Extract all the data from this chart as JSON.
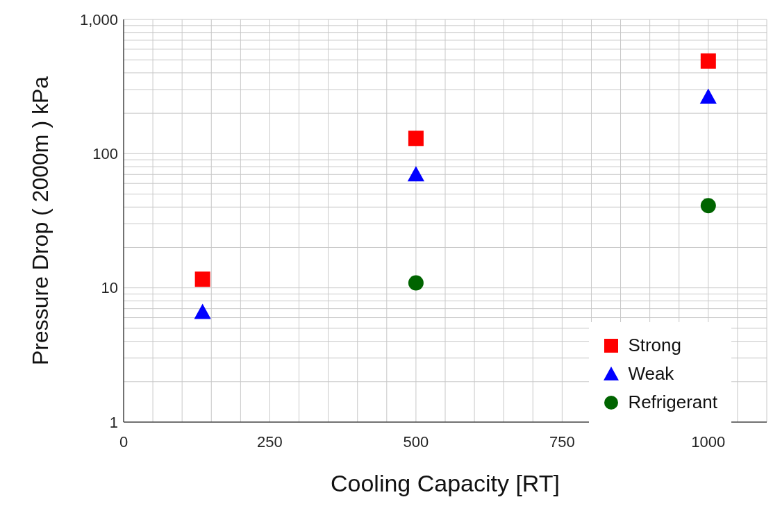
{
  "chart_data": {
    "type": "scatter",
    "xlabel": "Cooling Capacity  [RT]",
    "ylabel": "Pressure Drop ( 2000m )    kPa",
    "log": "y",
    "grid": true,
    "legend": "bottom right",
    "xlim": [
      0,
      1100
    ],
    "xticks": [
      0,
      {
        "value": 50,
        "label": null
      },
      {
        "value": 100,
        "label": null
      },
      {
        "value": 150,
        "label": null
      },
      {
        "value": 200,
        "label": null
      },
      250,
      {
        "value": 300,
        "label": null
      },
      {
        "value": 350,
        "label": null
      },
      {
        "value": 400,
        "label": null
      },
      {
        "value": 450,
        "label": null
      },
      500,
      {
        "value": 550,
        "label": null
      },
      {
        "value": 600,
        "label": null
      },
      {
        "value": 650,
        "label": null
      },
      {
        "value": 700,
        "label": null
      },
      750,
      {
        "value": 800,
        "label": null
      },
      {
        "value": 850,
        "label": null
      },
      {
        "value": 900,
        "label": null
      },
      {
        "value": 950,
        "label": null
      },
      1000,
      {
        "value": 1050,
        "label": null
      }
    ],
    "ylim": [
      1,
      1000
    ],
    "yticks": [
      1,
      {
        "value": 2,
        "label": null
      },
      {
        "value": 3,
        "label": null
      },
      {
        "value": 4,
        "label": null
      },
      {
        "value": 5,
        "label": null
      },
      {
        "value": 6,
        "label": null
      },
      {
        "value": 7,
        "label": null
      },
      {
        "value": 8,
        "label": null
      },
      {
        "value": 9,
        "label": null
      },
      10,
      {
        "value": 20,
        "label": null
      },
      {
        "value": 30,
        "label": null
      },
      {
        "value": 40,
        "label": null
      },
      {
        "value": 50,
        "label": null
      },
      {
        "value": 60,
        "label": null
      },
      {
        "value": 70,
        "label": null
      },
      {
        "value": 80,
        "label": null
      },
      {
        "value": 90,
        "label": null
      },
      100,
      {
        "value": 200,
        "label": null
      },
      {
        "value": 300,
        "label": null
      },
      {
        "value": 400,
        "label": null
      },
      {
        "value": 500,
        "label": null
      },
      {
        "value": 600,
        "label": null
      },
      {
        "value": 700,
        "label": null
      },
      {
        "value": 800,
        "label": null
      },
      {
        "value": 900,
        "label": null
      },
      {
        "value": 1000,
        "label": "1,000"
      }
    ],
    "series": [
      {
        "name": "Strong",
        "color": "#ff0000",
        "marker": "square",
        "x": [
          135,
          500,
          1000
        ],
        "values": [
          11.6,
          130,
          490
        ]
      },
      {
        "name": "Weak",
        "color": "#0000ff",
        "marker": "triangle",
        "x": [
          135,
          500,
          1000
        ],
        "values": [
          6.6,
          70,
          265
        ]
      },
      {
        "name": "Refrigerant",
        "color": "#006400",
        "marker": "circle",
        "x": [
          500,
          1000
        ],
        "values": [
          10.9,
          41
        ]
      }
    ]
  }
}
